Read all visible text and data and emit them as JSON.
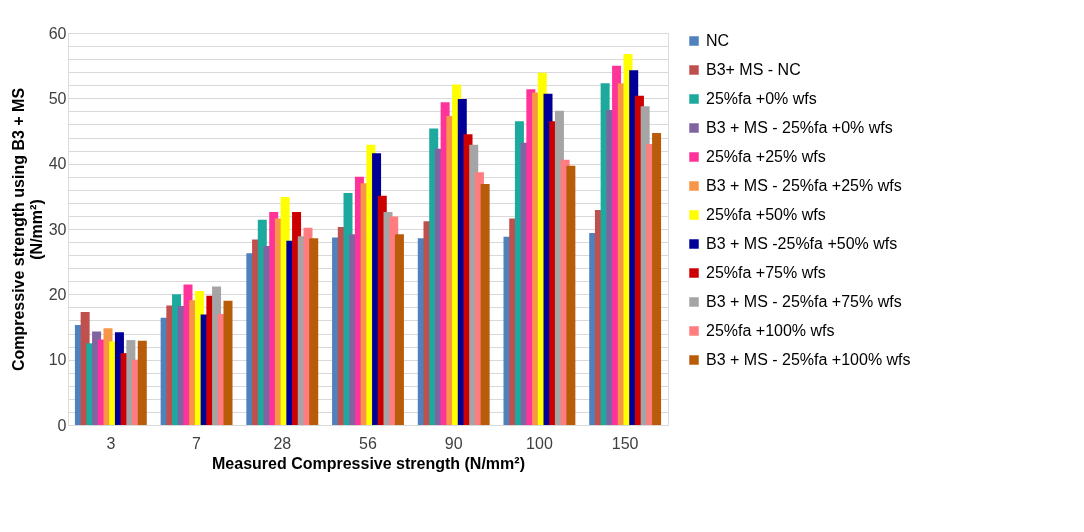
{
  "chart_data": {
    "type": "bar",
    "xlabel": "Measured Compressive strength (N/mm²)",
    "ylabel": "Compressive strength using B3 + MS (N/mm²)",
    "categories": [
      "3",
      "7",
      "28",
      "56",
      "90",
      "100",
      "150"
    ],
    "ylim": [
      0,
      60
    ],
    "yticks": [
      0,
      {
        "value": 2,
        "label": null
      },
      {
        "value": 4,
        "label": null
      },
      {
        "value": 6,
        "label": null
      },
      {
        "value": 8,
        "label": null
      },
      10,
      {
        "value": 12,
        "label": null
      },
      {
        "value": 14,
        "label": null
      },
      {
        "value": 16,
        "label": null
      },
      {
        "value": 18,
        "label": null
      },
      20,
      {
        "value": 22,
        "label": null
      },
      {
        "value": 24,
        "label": null
      },
      {
        "value": 26,
        "label": null
      },
      {
        "value": 28,
        "label": null
      },
      30,
      {
        "value": 32,
        "label": null
      },
      {
        "value": 34,
        "label": null
      },
      {
        "value": 36,
        "label": null
      },
      {
        "value": 38,
        "label": null
      },
      40,
      {
        "value": 42,
        "label": null
      },
      {
        "value": 44,
        "label": null
      },
      {
        "value": 46,
        "label": null
      },
      {
        "value": 48,
        "label": null
      },
      50,
      {
        "value": 52,
        "label": null
      },
      {
        "value": 54,
        "label": null
      },
      {
        "value": 56,
        "label": null
      },
      {
        "value": 58,
        "label": null
      },
      60
    ],
    "grid": "y",
    "legend": "right",
    "series": [
      {
        "name": "NC",
        "color": "#4f81bd",
        "values": [
          15.3,
          16.4,
          26.3,
          28.7,
          28.6,
          28.8,
          29.4
        ]
      },
      {
        "name": "B3+ MS - NC",
        "color": "#c0504d",
        "values": [
          17.3,
          18.3,
          28.4,
          30.3,
          31.2,
          31.6,
          32.9
        ]
      },
      {
        "name": "25%fa +0% wfs",
        "color": "#1ea99f",
        "values": [
          12.5,
          20.0,
          31.4,
          35.5,
          45.4,
          46.5,
          52.3
        ]
      },
      {
        "name": "B3 + MS - 25%fa +0% wfs",
        "color": "#8064a2",
        "values": [
          14.3,
          18.2,
          27.4,
          29.2,
          42.3,
          43.2,
          48.2
        ]
      },
      {
        "name": "25%fa +25% wfs",
        "color": "#ff3399",
        "values": [
          13.1,
          21.5,
          32.6,
          38.0,
          49.4,
          51.4,
          55.0
        ]
      },
      {
        "name": "B3 + MS - 25%fa +25% wfs",
        "color": "#f79646",
        "values": [
          14.8,
          19.1,
          31.6,
          37.0,
          47.3,
          50.9,
          52.3
        ]
      },
      {
        "name": "25%fa +50% wfs",
        "color": "#ffff00",
        "values": [
          12.8,
          20.5,
          34.9,
          42.9,
          52.1,
          53.9,
          56.8
        ]
      },
      {
        "name": "B3 + MS -25%fa +50% wfs",
        "color": "#000099",
        "values": [
          14.2,
          16.9,
          28.2,
          41.6,
          49.9,
          50.7,
          54.3
        ]
      },
      {
        "name": "25%fa +75% wfs",
        "color": "#cc0000",
        "values": [
          11.0,
          19.8,
          32.6,
          35.1,
          44.5,
          46.5,
          50.4
        ]
      },
      {
        "name": "B3 + MS - 25%fa +75% wfs",
        "color": "#a5a5a5",
        "values": [
          13.0,
          21.2,
          28.9,
          32.6,
          42.9,
          48.1,
          48.8
        ]
      },
      {
        "name": "25%fa +100% wfs",
        "color": "#ff7c80",
        "values": [
          10.0,
          17.0,
          30.2,
          31.9,
          38.7,
          40.6,
          43.0
        ]
      },
      {
        "name": "B3 + MS - 25%fa +100% wfs",
        "color": "#b85c0a",
        "values": [
          12.9,
          19.0,
          28.6,
          29.2,
          36.9,
          39.7,
          44.7
        ]
      }
    ]
  }
}
